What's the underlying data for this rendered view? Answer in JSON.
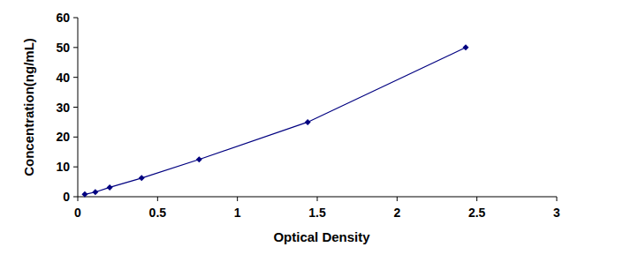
{
  "chart_data": {
    "type": "line",
    "x_label": "Optical Density",
    "y_label": "Concentration(ng/mL)",
    "x": [
      0.044,
      0.11,
      0.2,
      0.4,
      0.76,
      1.44,
      2.43
    ],
    "values": [
      0.78,
      1.56,
      3.12,
      6.25,
      12.5,
      25,
      50
    ],
    "color": "#000080",
    "marker": "diamond",
    "xlim": [
      0,
      3
    ],
    "ylim": [
      0,
      60
    ],
    "xticks": [
      0,
      0.5,
      1,
      1.5,
      2,
      2.5,
      3
    ],
    "yticks": [
      0,
      10,
      20,
      30,
      40,
      50,
      60
    ],
    "grid": false
  }
}
